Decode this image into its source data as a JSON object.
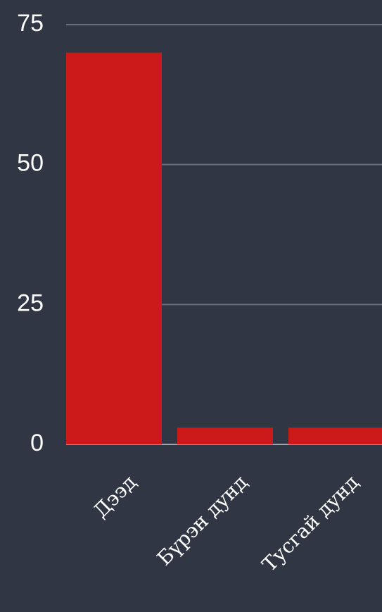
{
  "chart_data": {
    "type": "bar",
    "categories": [
      "Дээд",
      "Бүрэн дунд",
      "Тусгай дунд"
    ],
    "values": [
      70,
      3,
      3
    ],
    "color": "#cc1a1a",
    "ylim": [
      0,
      75
    ],
    "yticks": [
      0,
      25,
      50,
      75
    ],
    "grid": true
  }
}
